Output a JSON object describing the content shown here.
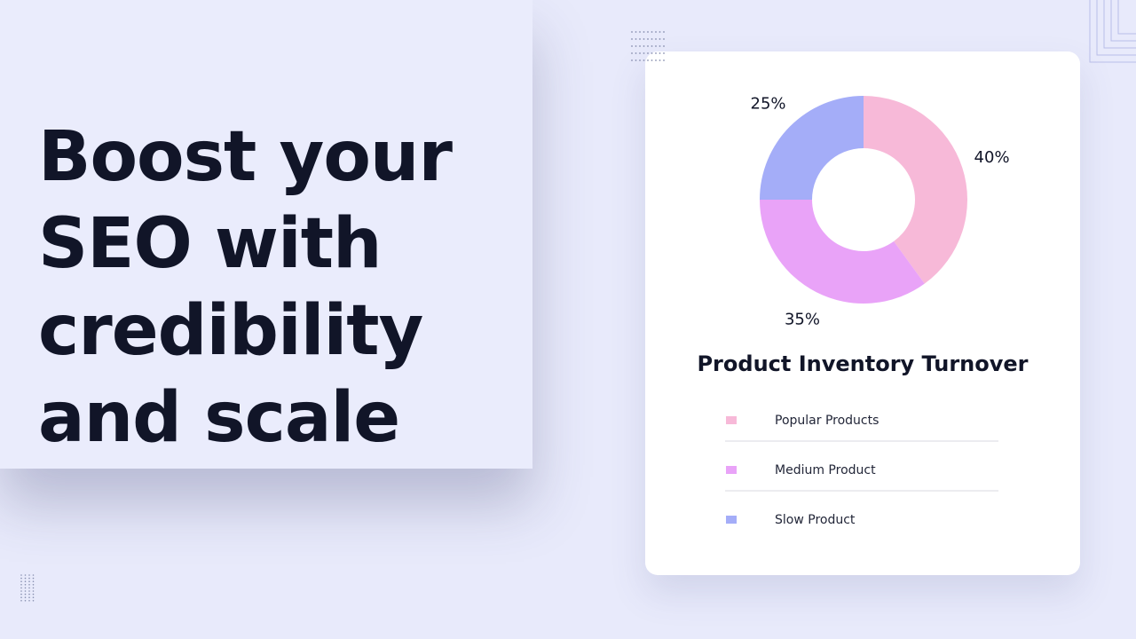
{
  "headline": [
    "Boost your",
    "SEO with",
    "credibility",
    "and scale"
  ],
  "chart_data": {
    "type": "donut",
    "title": "Product Inventory Turnover",
    "categories": [
      "Popular Products",
      "Medium Product",
      "Slow Product"
    ],
    "values": [
      40,
      35,
      25
    ],
    "value_labels": [
      "40%",
      "35%",
      "25%"
    ],
    "colors": [
      "#f7b9d8",
      "#e9a3f8",
      "#a4adf8"
    ]
  }
}
